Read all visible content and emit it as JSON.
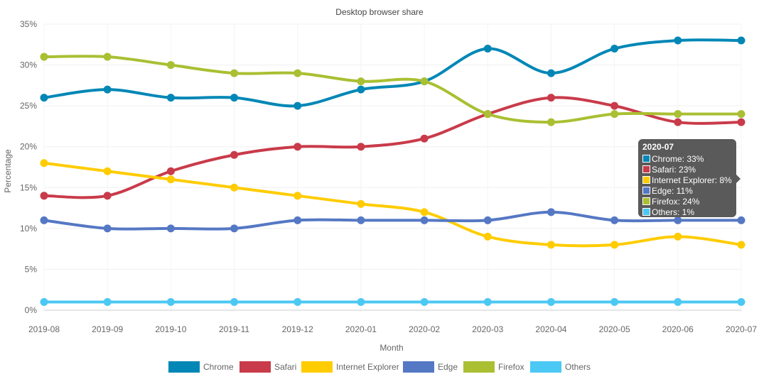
{
  "chart_data": {
    "type": "line",
    "title": "Desktop browser share",
    "xlabel": "Month",
    "ylabel": "Percentage",
    "ylim": [
      0,
      35
    ],
    "yticks": [
      "0%",
      "5%",
      "10%",
      "15%",
      "20%",
      "25%",
      "30%",
      "35%"
    ],
    "categories": [
      "2019-08",
      "2019-09",
      "2019-10",
      "2019-11",
      "2019-12",
      "2020-01",
      "2020-02",
      "2020-03",
      "2020-04",
      "2020-05",
      "2020-06",
      "2020-07"
    ],
    "grid": true,
    "legend_placement": "bottom",
    "series": [
      {
        "name": "Chrome",
        "color": "#0087b6",
        "values": [
          26,
          27,
          26,
          26,
          25,
          27,
          28,
          32,
          29,
          32,
          33,
          33
        ]
      },
      {
        "name": "Safari",
        "color": "#c93b4a",
        "values": [
          14,
          14,
          17,
          19,
          20,
          20,
          21,
          24,
          26,
          25,
          23,
          23
        ]
      },
      {
        "name": "Internet Explorer",
        "color": "#ffcc00",
        "values": [
          18,
          17,
          16,
          15,
          14,
          13,
          12,
          9,
          8,
          8,
          9,
          8
        ]
      },
      {
        "name": "Edge",
        "color": "#5578c4",
        "values": [
          11,
          10,
          10,
          10,
          11,
          11,
          11,
          11,
          12,
          11,
          11,
          11
        ]
      },
      {
        "name": "Firefox",
        "color": "#aabf32",
        "values": [
          31,
          31,
          30,
          29,
          29,
          28,
          28,
          24,
          23,
          24,
          24,
          24
        ]
      },
      {
        "name": "Others",
        "color": "#4cc8f4",
        "values": [
          1,
          1,
          1,
          1,
          1,
          1,
          1,
          1,
          1,
          1,
          1,
          1
        ]
      }
    ]
  },
  "tooltip": {
    "title": "2020-07",
    "rows": [
      "Chrome: 33%",
      "Safari: 23%",
      "Internet Explorer: 8%",
      "Edge: 11%",
      "Firefox: 24%",
      "Others: 1%"
    ]
  }
}
